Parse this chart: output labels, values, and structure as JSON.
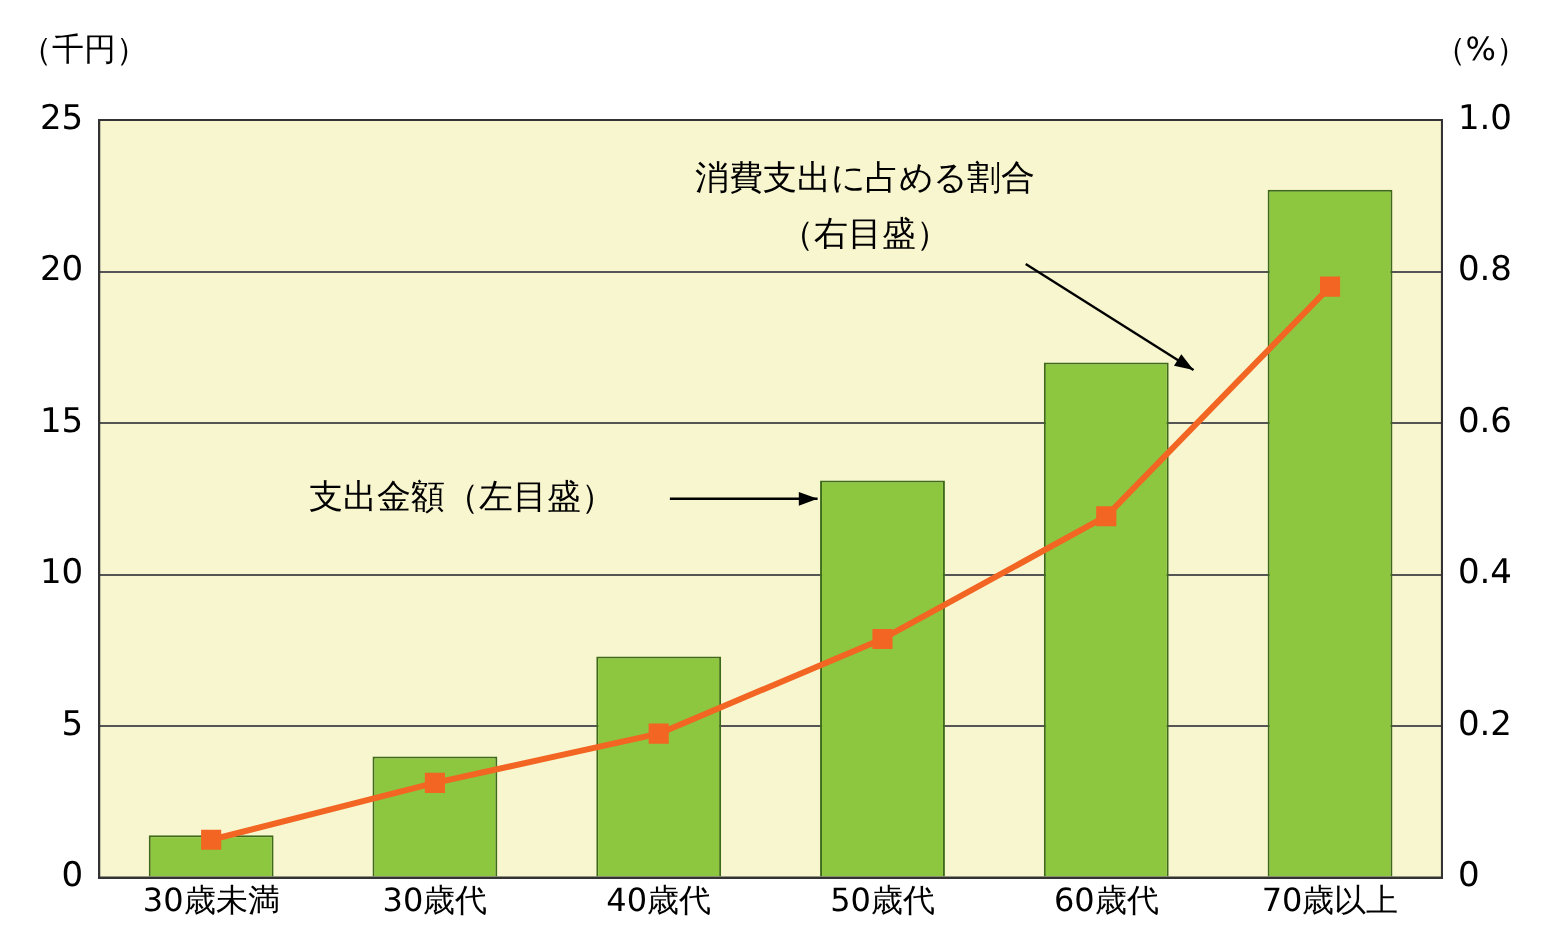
{
  "chart_data": {
    "type": "bar",
    "categories": [
      "30歳未満",
      "30歳代",
      "40歳代",
      "50歳代",
      "60歳代",
      "70歳以上"
    ],
    "series": [
      {
        "color": "#8dc63f",
        "values": [
          1.4,
          4.0,
          7.3,
          13.1,
          17.0,
          22.7
        ]
      },
      {
        "type": "line",
        "axis": "y2",
        "color": "#f26522",
        "values": [
          0.05,
          0.125,
          0.19,
          0.315,
          0.477,
          0.78
        ]
      }
    ],
    "ylabel": "（千円）",
    "y2label": "（%）",
    "ylim": [
      0,
      25
    ],
    "yticks": [
      0,
      5,
      10,
      15,
      20,
      25
    ],
    "y2lim": [
      0,
      1
    ],
    "y2ticks": [
      0,
      0.2,
      0.4,
      0.6,
      0.8,
      {
        "value": 1,
        "label": "1.0"
      }
    ],
    "grid": "y",
    "legend": false,
    "marker": "square",
    "line_style": "solid",
    "annotations": [
      "消費支出に占める割合",
      "（右目盛）",
      "支出金額（左目盛）"
    ]
  }
}
